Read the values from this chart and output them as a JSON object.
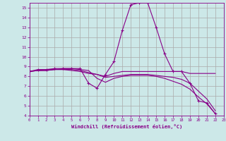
{
  "xlabel": "Windchill (Refroidissement éolien,°C)",
  "bg_color": "#cce8e8",
  "grid_color": "#aaaaaa",
  "line_color": "#880088",
  "xmin": 0,
  "xmax": 23,
  "ymin": 4,
  "ymax": 15.5,
  "series": [
    {
      "x": [
        0,
        1,
        2,
        3,
        4,
        5,
        6,
        7,
        8,
        9,
        10,
        11,
        12,
        13,
        14,
        15,
        16,
        17,
        18,
        19,
        20,
        21,
        22
      ],
      "y": [
        8.5,
        8.7,
        8.7,
        8.8,
        8.8,
        8.8,
        8.8,
        7.3,
        6.8,
        8.2,
        9.5,
        12.7,
        15.3,
        15.5,
        15.5,
        13.0,
        10.3,
        8.5,
        8.5,
        7.3,
        5.5,
        5.3,
        4.2
      ],
      "marker": true
    },
    {
      "x": [
        0,
        1,
        2,
        3,
        4,
        5,
        6,
        7,
        8,
        9,
        10,
        11,
        12,
        13,
        14,
        15,
        16,
        17,
        18,
        19,
        20,
        21,
        22
      ],
      "y": [
        8.5,
        8.6,
        8.6,
        8.7,
        8.7,
        8.6,
        8.5,
        8.3,
        8.2,
        8.0,
        8.3,
        8.5,
        8.5,
        8.5,
        8.5,
        8.5,
        8.5,
        8.5,
        8.5,
        8.3,
        8.3,
        8.3,
        8.3
      ],
      "marker": false
    },
    {
      "x": [
        0,
        1,
        2,
        3,
        4,
        5,
        6,
        7,
        8,
        9,
        10,
        11,
        12,
        13,
        14,
        15,
        16,
        17,
        18,
        19,
        20,
        21,
        22
      ],
      "y": [
        8.5,
        8.6,
        8.6,
        8.7,
        8.7,
        8.7,
        8.6,
        8.4,
        8.2,
        7.9,
        8.0,
        8.1,
        8.2,
        8.2,
        8.2,
        8.1,
        8.0,
        7.9,
        7.7,
        7.3,
        6.5,
        5.7,
        4.5
      ],
      "marker": false
    },
    {
      "x": [
        0,
        1,
        2,
        3,
        4,
        5,
        6,
        7,
        8,
        9,
        10,
        11,
        12,
        13,
        14,
        15,
        16,
        17,
        18,
        19,
        20,
        21,
        22
      ],
      "y": [
        8.5,
        8.6,
        8.7,
        8.7,
        8.8,
        8.8,
        8.7,
        8.6,
        7.8,
        7.4,
        7.8,
        8.0,
        8.1,
        8.1,
        8.1,
        8.0,
        7.8,
        7.5,
        7.2,
        6.7,
        5.9,
        5.2,
        4.2
      ],
      "marker": false
    }
  ],
  "yticks": [
    4,
    5,
    6,
    7,
    8,
    9,
    10,
    11,
    12,
    13,
    14,
    15
  ],
  "xticks": [
    0,
    1,
    2,
    3,
    4,
    5,
    6,
    7,
    8,
    9,
    10,
    11,
    12,
    13,
    14,
    15,
    16,
    17,
    18,
    19,
    20,
    21,
    22,
    23
  ]
}
